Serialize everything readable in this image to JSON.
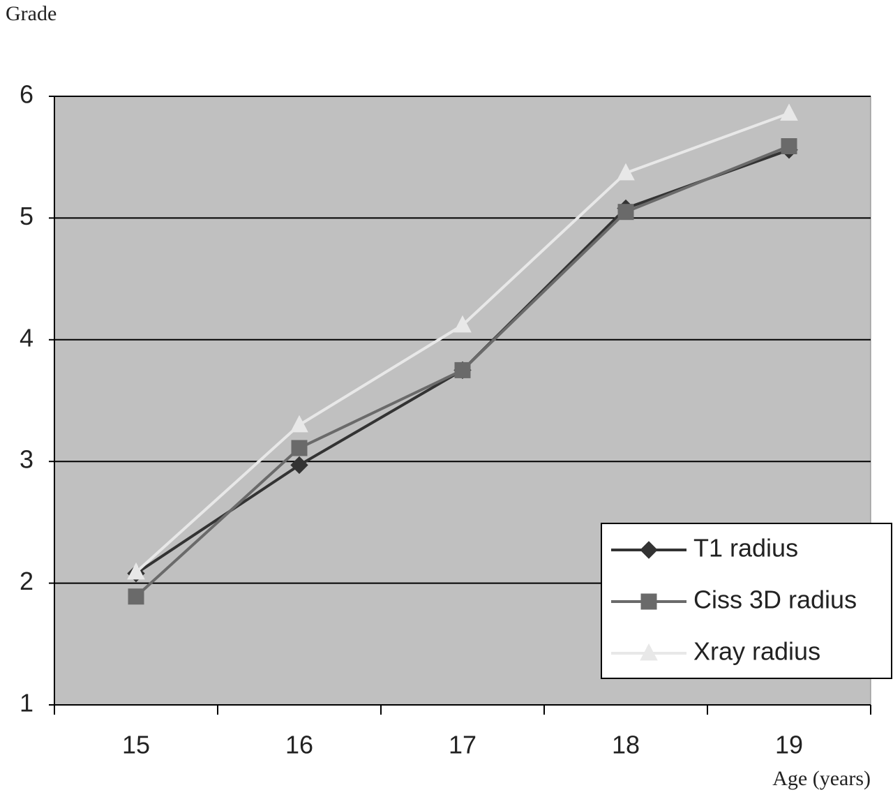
{
  "chart_data": {
    "type": "line",
    "y_label": "Grade",
    "x_label": "Age (years)",
    "categories": [
      "15",
      "16",
      "17",
      "18",
      "19"
    ],
    "series": [
      {
        "name": "T1 radius",
        "color": "#333333",
        "marker": "diamond",
        "values": [
          2.08,
          2.97,
          3.75,
          5.08,
          5.56
        ]
      },
      {
        "name": "Ciss 3D radius",
        "color": "#6a6a6a",
        "marker": "square",
        "values": [
          1.89,
          3.11,
          3.75,
          5.05,
          5.59
        ]
      },
      {
        "name": "Xray radius",
        "color": "#e8e8e8",
        "marker": "triangle",
        "values": [
          2.09,
          3.3,
          4.12,
          5.37,
          5.86
        ]
      }
    ],
    "ylim": [
      1,
      6
    ],
    "yticks": [
      1,
      2,
      3,
      4,
      5,
      6
    ],
    "grid": true,
    "legend": "lower right"
  }
}
